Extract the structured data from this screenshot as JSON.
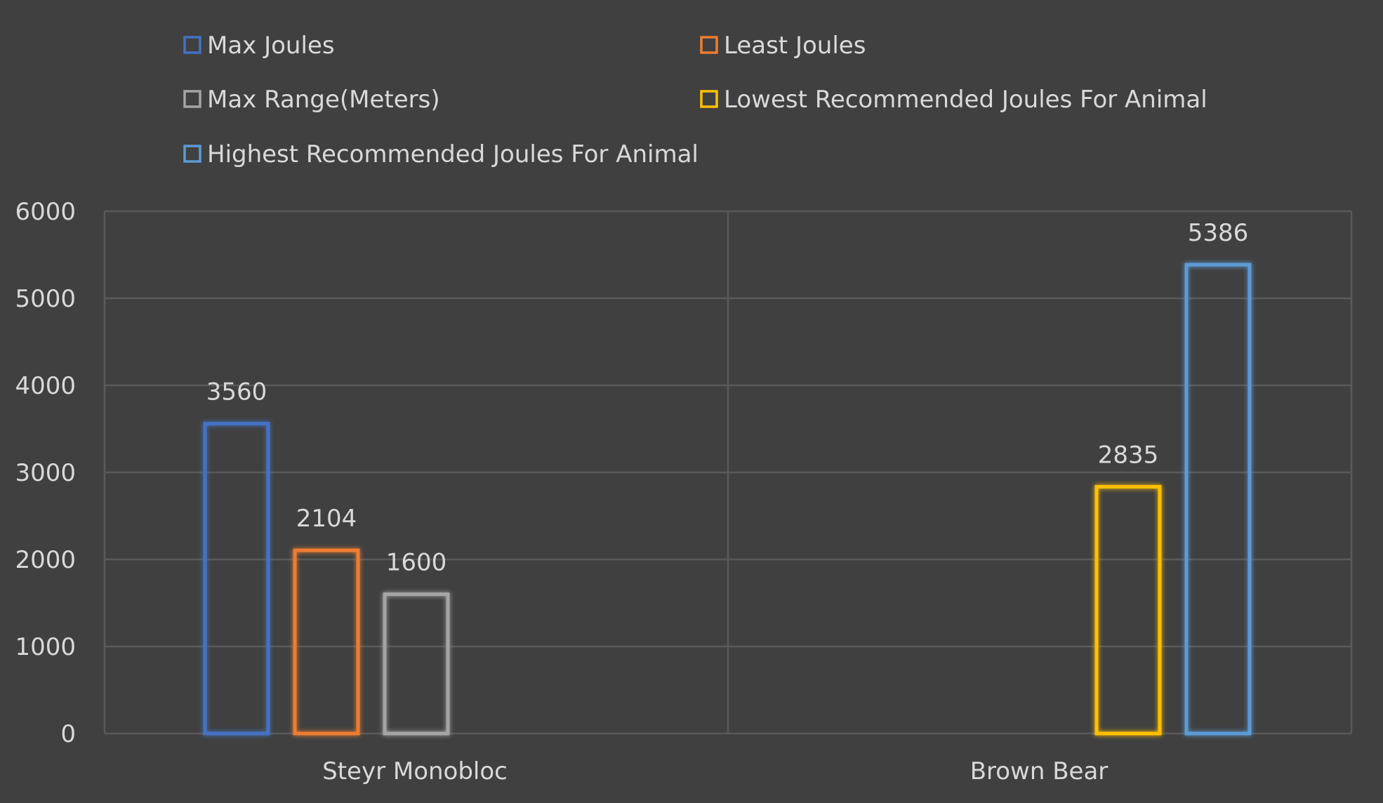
{
  "chart_data": {
    "type": "bar",
    "categories": [
      "Steyr Monobloc",
      "Brown Bear"
    ],
    "series": [
      {
        "name": "Max Joules",
        "color": "#4472c4",
        "values": [
          3560,
          null
        ]
      },
      {
        "name": "Least Joules",
        "color": "#ed7d31",
        "values": [
          2104,
          null
        ]
      },
      {
        "name": "Max Range(Meters)",
        "color": "#a5a5a5",
        "values": [
          1600,
          null
        ]
      },
      {
        "name": "Lowest Recommended Joules For Animal",
        "color": "#ffc000",
        "values": [
          null,
          2835
        ]
      },
      {
        "name": "Highest Recommended Joules For Animal",
        "color": "#5b9bd5",
        "values": [
          null,
          5386
        ]
      }
    ],
    "ylim": [
      0,
      6000
    ],
    "yticks": [
      0,
      1000,
      2000,
      3000,
      4000,
      5000,
      6000
    ],
    "ytick_labels": [
      "0",
      "1000",
      "2000",
      "3000",
      "4000",
      "5000",
      "6000"
    ],
    "grid": true,
    "legend_position": "top",
    "title": "",
    "xlabel": "",
    "ylabel": ""
  }
}
